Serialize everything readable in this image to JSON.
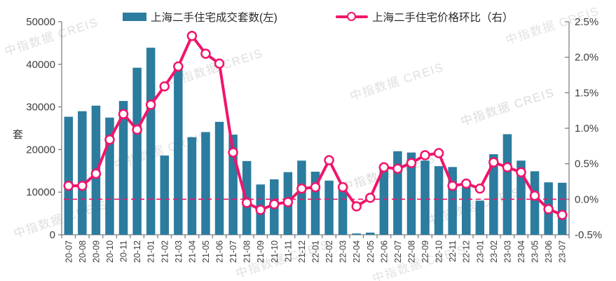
{
  "legend": {
    "volume_label": "上海二手住宅成交套数(左)",
    "price_label": "上海二手住宅价格环比（右）"
  },
  "chart_data": {
    "type": "bar",
    "title": "",
    "unit_label": "套",
    "watermark": "中指数据 CREIS",
    "categories": [
      "20-07",
      "20-08",
      "20-09",
      "20-10",
      "20-11",
      "20-12",
      "21-01",
      "21-02",
      "21-03",
      "21-04",
      "21-05",
      "21-06",
      "21-07",
      "21-08",
      "21-09",
      "21-10",
      "21-11",
      "21-12",
      "22-01",
      "22-02",
      "22-03",
      "22-04",
      "22-05",
      "22-06",
      "22-07",
      "22-08",
      "22-09",
      "22-10",
      "22-11",
      "22-12",
      "23-01",
      "23-02",
      "23-03",
      "23-04",
      "23-05",
      "23-06",
      "23-07"
    ],
    "series": [
      {
        "name": "上海二手住宅成交套数(左)",
        "type": "bar",
        "axis": "left",
        "color": "#2b7c9e",
        "values": [
          27700,
          29000,
          30300,
          27500,
          31400,
          39200,
          43900,
          18600,
          39000,
          22900,
          24100,
          26500,
          23500,
          17300,
          11800,
          13000,
          14700,
          17400,
          14800,
          12700,
          11000,
          300,
          500,
          15100,
          19600,
          19300,
          17400,
          16100,
          15900,
          11200,
          8000,
          18900,
          23600,
          17400,
          14900,
          12300,
          12200
        ]
      },
      {
        "name": "上海二手住宅价格环比（右）",
        "type": "line",
        "axis": "right",
        "color": "#f0156c",
        "marker": "circle-open",
        "values": [
          0.19,
          0.19,
          0.36,
          0.84,
          1.2,
          0.98,
          1.33,
          1.59,
          1.87,
          2.3,
          2.05,
          1.91,
          0.66,
          -0.05,
          -0.15,
          -0.07,
          -0.04,
          0.15,
          0.17,
          0.55,
          0.17,
          -0.1,
          0.02,
          0.45,
          0.43,
          0.51,
          0.62,
          0.65,
          0.19,
          0.22,
          0.15,
          0.52,
          0.45,
          0.38,
          0.05,
          -0.14,
          -0.22
        ]
      }
    ],
    "left_axis": {
      "min": 0,
      "max": 50000,
      "step": 10000,
      "tick_labels": [
        "0",
        "10000",
        "20000",
        "30000",
        "40000",
        "50000"
      ]
    },
    "right_axis": {
      "min": -0.5,
      "max": 2.5,
      "step": 0.5,
      "tick_labels": [
        "-0.5%",
        "0.0%",
        "0.5%",
        "1.0%",
        "1.5%",
        "2.0%",
        "2.5%"
      ]
    },
    "zero_line": {
      "value": 0,
      "style": "dashed",
      "color": "#f0156c"
    },
    "legend_position": "top",
    "grid": "off"
  }
}
